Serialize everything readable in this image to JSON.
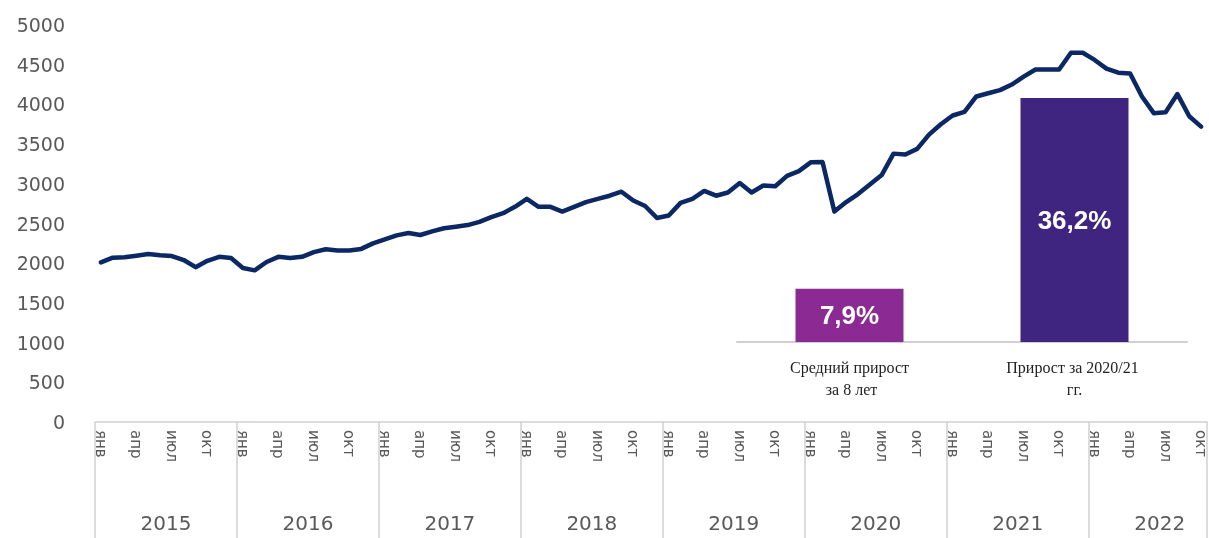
{
  "chart_data": [
    {
      "type": "line",
      "categories": [
        "янв",
        null,
        null,
        "апр",
        null,
        null,
        "июл",
        null,
        null,
        "окт",
        null,
        null,
        "янв",
        null,
        null,
        "апр",
        null,
        null,
        "июл",
        null,
        null,
        "окт",
        null,
        null,
        "янв",
        null,
        null,
        "апр",
        null,
        null,
        "июл",
        null,
        null,
        "окт",
        null,
        null,
        "янв",
        null,
        null,
        "апр",
        null,
        null,
        "июл",
        null,
        null,
        "окт",
        null,
        null,
        "янв",
        null,
        null,
        "апр",
        null,
        null,
        "июл",
        null,
        null,
        "окт",
        null,
        null,
        "янв",
        null,
        null,
        "апр",
        null,
        null,
        "июл",
        null,
        null,
        "окт",
        null,
        null,
        "янв",
        null,
        null,
        "апр",
        null,
        null,
        "июл",
        null,
        null,
        "окт",
        null,
        null,
        "янв",
        null,
        null,
        "апр",
        null,
        null,
        "июл",
        null,
        null,
        "окт"
      ],
      "series": [
        {
          "color": "#0b2864",
          "values": [
            2010,
            2070,
            2075,
            2095,
            2115,
            2100,
            2090,
            2040,
            1950,
            2030,
            2080,
            2065,
            1940,
            1910,
            2015,
            2080,
            2065,
            2080,
            2140,
            2175,
            2160,
            2160,
            2180,
            2250,
            2300,
            2350,
            2380,
            2355,
            2400,
            2440,
            2460,
            2480,
            2520,
            2580,
            2630,
            2710,
            2810,
            2710,
            2710,
            2650,
            2710,
            2770,
            2810,
            2850,
            2900,
            2790,
            2720,
            2570,
            2600,
            2760,
            2810,
            2910,
            2850,
            2890,
            3010,
            2890,
            2980,
            2970,
            3100,
            3160,
            3270,
            3275,
            2650,
            2770,
            2870,
            2990,
            3110,
            3380,
            3370,
            3440,
            3620,
            3750,
            3860,
            3905,
            4100,
            4140,
            4180,
            4250,
            4350,
            4440,
            4440,
            4440,
            4650,
            4650,
            4560,
            4450,
            4400,
            4390,
            4100,
            3890,
            3900,
            4130,
            3850,
            3720
          ]
        }
      ],
      "annotations": [
        "2015",
        "2016",
        "2017",
        "2018",
        "2019",
        "2020",
        "2021",
        "2022"
      ],
      "ylim": [
        0,
        5000
      ],
      "yticks": [
        0,
        500,
        1000,
        1500,
        2000,
        2500,
        3000,
        3500,
        4000,
        4500,
        5000
      ],
      "grid": false,
      "marker": "none",
      "line_style": "solid"
    },
    {
      "type": "bar",
      "categories": [
        "Средний прирост за 8 лет",
        "Прирост за 2020/21 гг."
      ],
      "values": [
        7.9,
        36.2
      ],
      "value_labels": [
        "7,9%",
        "36,2%"
      ],
      "colors": [
        "#8a2a92",
        "#3f2580"
      ],
      "tick_labels": "x"
    }
  ]
}
